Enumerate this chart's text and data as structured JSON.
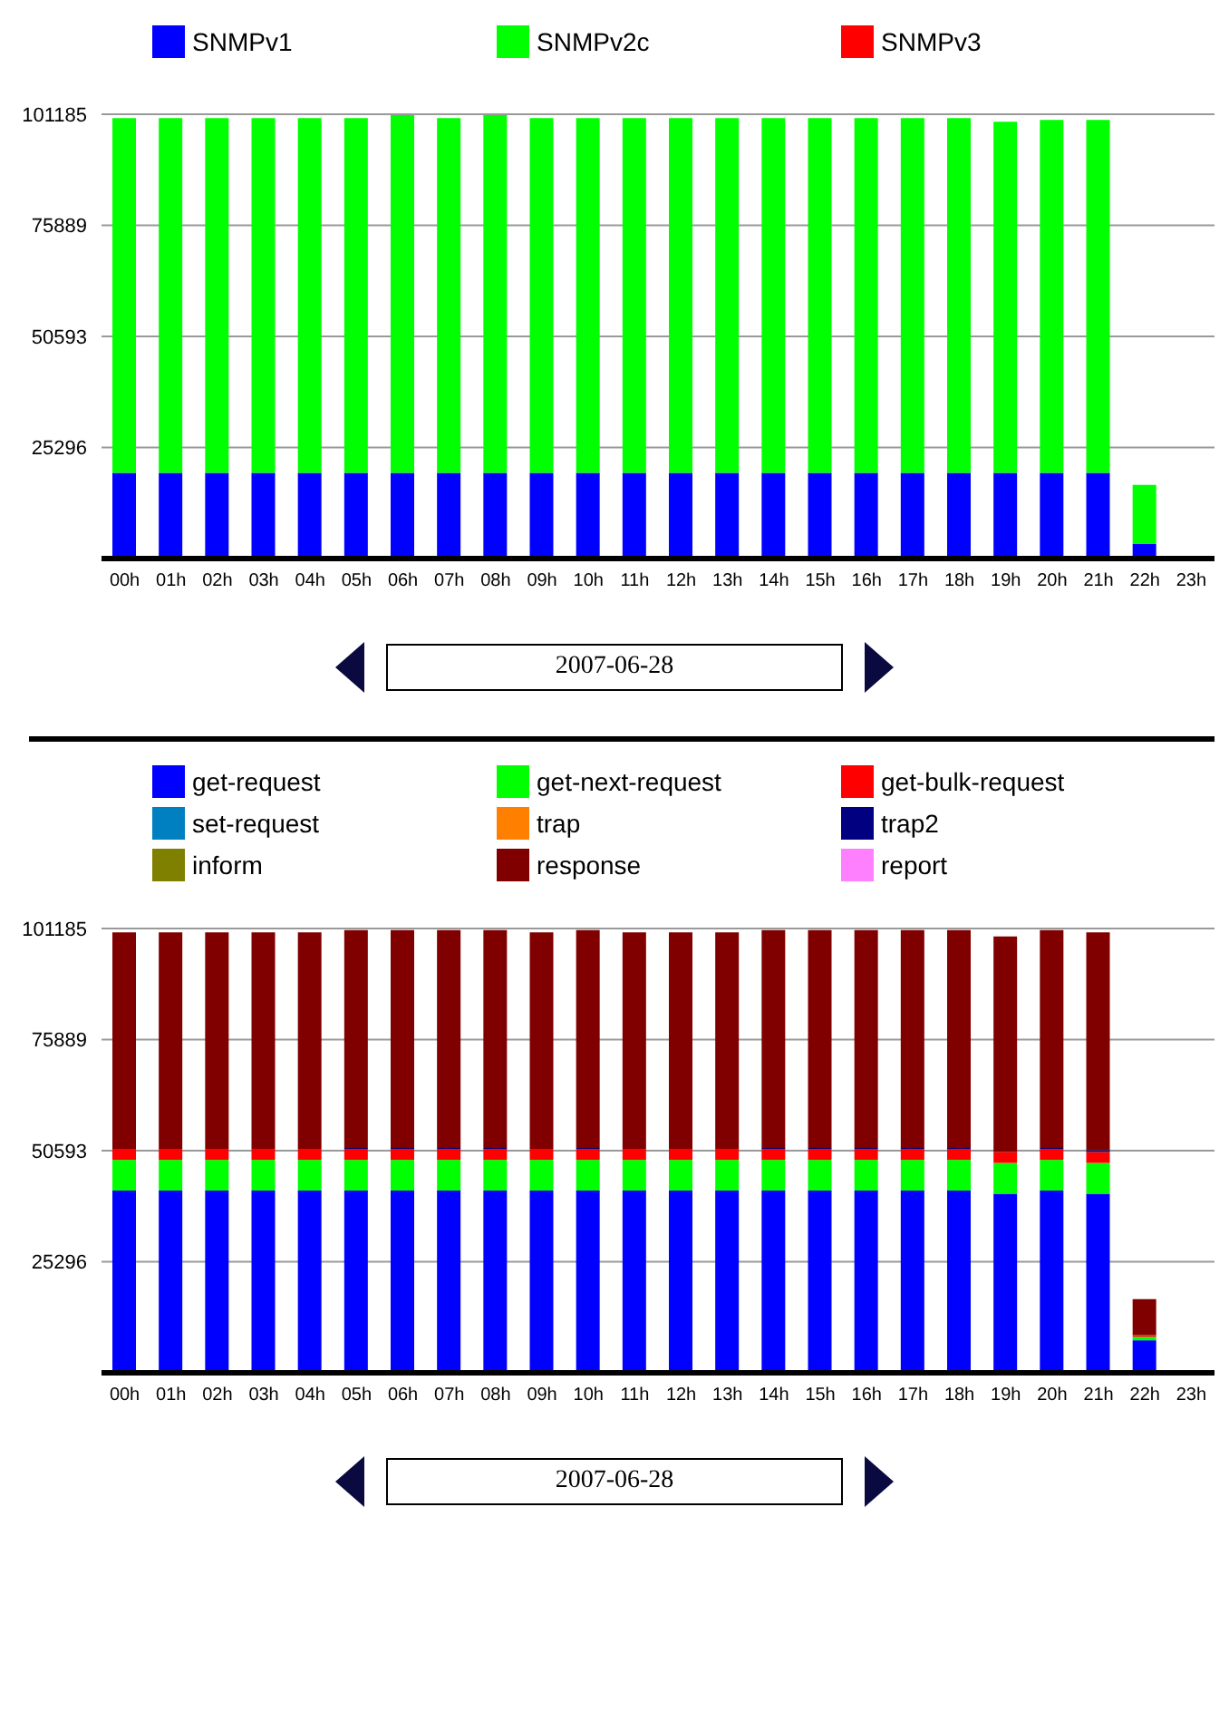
{
  "chart_data": [
    {
      "type": "bar",
      "stacked": true,
      "legend": "top",
      "grid": "y",
      "categories": [
        "00h",
        "01h",
        "02h",
        "03h",
        "04h",
        "05h",
        "06h",
        "07h",
        "08h",
        "09h",
        "10h",
        "11h",
        "12h",
        "13h",
        "14h",
        "15h",
        "16h",
        "17h",
        "18h",
        "19h",
        "20h",
        "21h",
        "22h",
        "23h"
      ],
      "ylim": [
        0,
        101185
      ],
      "yticks": [
        25296,
        50593,
        75889,
        101185
      ],
      "series": [
        {
          "name": "SNMPv1",
          "color": "#0000ff",
          "values": [
            19500,
            19500,
            19500,
            19500,
            19500,
            19500,
            19500,
            19500,
            19500,
            19500,
            19500,
            19500,
            19500,
            19500,
            19500,
            19500,
            19500,
            19500,
            19500,
            19500,
            19500,
            19500,
            3300,
            null
          ]
        },
        {
          "name": "SNMPv2c",
          "color": "#00ff00",
          "values": [
            80800,
            80800,
            80800,
            80800,
            80800,
            80800,
            81500,
            80800,
            81500,
            80800,
            80800,
            80800,
            80800,
            80800,
            80800,
            80800,
            80800,
            80800,
            80800,
            80000,
            80400,
            80400,
            13500,
            null
          ]
        },
        {
          "name": "SNMPv3",
          "color": "#ff0000",
          "values": [
            0,
            0,
            0,
            0,
            0,
            0,
            0,
            0,
            0,
            0,
            0,
            0,
            0,
            0,
            0,
            0,
            0,
            0,
            0,
            0,
            0,
            0,
            0,
            null
          ]
        }
      ],
      "annotations": [
        "2007-06-28"
      ]
    },
    {
      "type": "bar",
      "stacked": true,
      "legend": "top",
      "grid": "y",
      "categories": [
        "00h",
        "01h",
        "02h",
        "03h",
        "04h",
        "05h",
        "06h",
        "07h",
        "08h",
        "09h",
        "10h",
        "11h",
        "12h",
        "13h",
        "14h",
        "15h",
        "16h",
        "17h",
        "18h",
        "19h",
        "20h",
        "21h",
        "22h",
        "23h"
      ],
      "ylim": [
        0,
        101185
      ],
      "yticks": [
        25296,
        50593,
        75889,
        101185
      ],
      "series": [
        {
          "name": "get-request",
          "color": "#0000ff",
          "values": [
            41500,
            41500,
            41500,
            41500,
            41500,
            41500,
            41500,
            41500,
            41500,
            41500,
            41500,
            41500,
            41500,
            41500,
            41500,
            41500,
            41500,
            41500,
            41500,
            40800,
            41500,
            40800,
            7400,
            null
          ]
        },
        {
          "name": "get-next-request",
          "color": "#00ff00",
          "values": [
            7000,
            7000,
            7000,
            7000,
            7000,
            7000,
            7000,
            7000,
            7000,
            7000,
            7000,
            7000,
            7000,
            7000,
            7000,
            7000,
            7000,
            7000,
            7000,
            7000,
            7000,
            7000,
            800,
            null
          ]
        },
        {
          "name": "get-bulk-request",
          "color": "#ff0000",
          "values": [
            2500,
            2500,
            2500,
            2500,
            2500,
            2500,
            2500,
            2500,
            2500,
            2500,
            2500,
            2500,
            2500,
            2500,
            2500,
            2500,
            2500,
            2500,
            2500,
            2500,
            2500,
            2500,
            400,
            null
          ]
        },
        {
          "name": "set-request",
          "color": "#0080c0",
          "values": [
            0,
            0,
            0,
            0,
            0,
            0,
            0,
            0,
            0,
            0,
            0,
            0,
            0,
            0,
            0,
            0,
            0,
            0,
            0,
            0,
            0,
            0,
            0,
            null
          ]
        },
        {
          "name": "trap",
          "color": "#ff8000",
          "values": [
            0,
            0,
            0,
            0,
            0,
            0,
            0,
            0,
            0,
            0,
            0,
            0,
            0,
            0,
            0,
            0,
            0,
            0,
            0,
            0,
            0,
            0,
            0,
            null
          ]
        },
        {
          "name": "trap2",
          "color": "#000080",
          "values": [
            0,
            0,
            0,
            0,
            0,
            400,
            400,
            400,
            400,
            0,
            400,
            0,
            0,
            0,
            400,
            400,
            400,
            400,
            400,
            0,
            400,
            400,
            0,
            null
          ]
        },
        {
          "name": "inform",
          "color": "#808000",
          "values": [
            0,
            0,
            0,
            0,
            0,
            0,
            0,
            0,
            0,
            0,
            0,
            0,
            0,
            0,
            0,
            0,
            0,
            0,
            0,
            0,
            0,
            0,
            0,
            null
          ]
        },
        {
          "name": "response",
          "color": "#800000",
          "values": [
            49300,
            49300,
            49300,
            49300,
            49300,
            49400,
            49400,
            49400,
            49400,
            49300,
            49400,
            49300,
            49300,
            49300,
            49400,
            49400,
            49400,
            49400,
            49400,
            49100,
            49400,
            49600,
            8200,
            null
          ]
        },
        {
          "name": "report",
          "color": "#ff80ff",
          "values": [
            0,
            0,
            0,
            0,
            0,
            0,
            0,
            0,
            0,
            0,
            0,
            0,
            0,
            0,
            0,
            0,
            0,
            0,
            0,
            0,
            0,
            0,
            0,
            null
          ]
        }
      ],
      "annotations": [
        "2007-06-28"
      ]
    }
  ]
}
